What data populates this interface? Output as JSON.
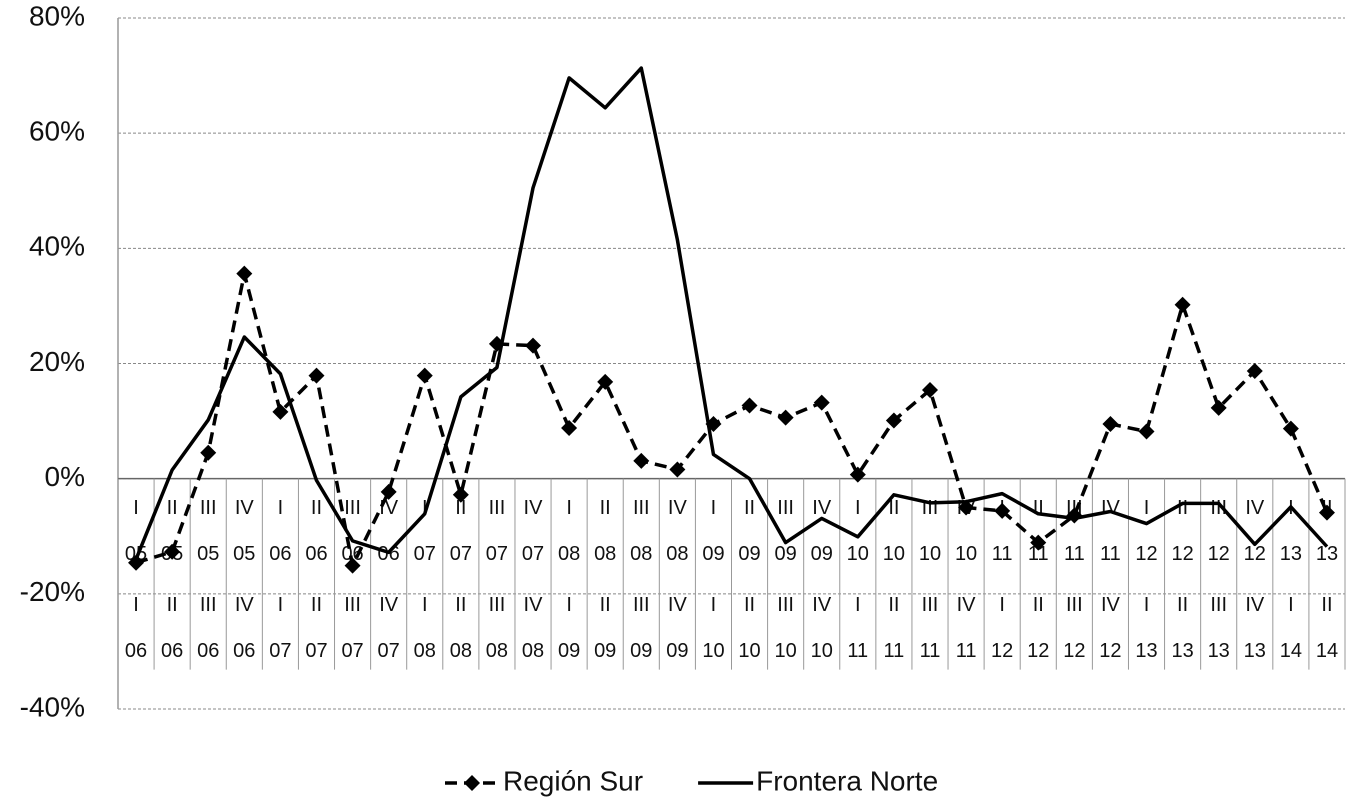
{
  "chart_data": {
    "type": "line",
    "categories": [
      [
        "I",
        "05",
        "I",
        "06"
      ],
      [
        "II",
        "05",
        "II",
        "06"
      ],
      [
        "III",
        "05",
        "III",
        "06"
      ],
      [
        "IV",
        "05",
        "IV",
        "06"
      ],
      [
        "I",
        "06",
        "I",
        "07"
      ],
      [
        "II",
        "06",
        "II",
        "07"
      ],
      [
        "III",
        "06",
        "III",
        "07"
      ],
      [
        "IV",
        "06",
        "IV",
        "07"
      ],
      [
        "I",
        "07",
        "I",
        "08"
      ],
      [
        "II",
        "07",
        "II",
        "08"
      ],
      [
        "III",
        "07",
        "III",
        "08"
      ],
      [
        "IV",
        "07",
        "IV",
        "08"
      ],
      [
        "I",
        "08",
        "I",
        "09"
      ],
      [
        "II",
        "08",
        "II",
        "09"
      ],
      [
        "III",
        "08",
        "III",
        "09"
      ],
      [
        "IV",
        "08",
        "IV",
        "09"
      ],
      [
        "I",
        "09",
        "I",
        "10"
      ],
      [
        "II",
        "09",
        "II",
        "10"
      ],
      [
        "III",
        "09",
        "III",
        "10"
      ],
      [
        "IV",
        "09",
        "IV",
        "10"
      ],
      [
        "I",
        "10",
        "I",
        "11"
      ],
      [
        "II",
        "10",
        "II",
        "11"
      ],
      [
        "III",
        "10",
        "III",
        "11"
      ],
      [
        "IV",
        "10",
        "IV",
        "11"
      ],
      [
        "I",
        "11",
        "I",
        "12"
      ],
      [
        "II",
        "11",
        "II",
        "12"
      ],
      [
        "III",
        "11",
        "III",
        "12"
      ],
      [
        "IV",
        "11",
        "IV",
        "12"
      ],
      [
        "I",
        "12",
        "I",
        "13"
      ],
      [
        "II",
        "12",
        "II",
        "13"
      ],
      [
        "III",
        "12",
        "III",
        "13"
      ],
      [
        "IV",
        "12",
        "IV",
        "13"
      ],
      [
        "I",
        "13",
        "I",
        "14"
      ],
      [
        "II",
        "13",
        "II",
        "14"
      ]
    ],
    "series": [
      {
        "name": "Región Sur",
        "color": "#000000",
        "style": "dashed",
        "marker": "diamond",
        "values": [
          -14.6,
          -12.7,
          4.5,
          35.6,
          11.6,
          17.9,
          -15.1,
          -2.3,
          17.9,
          -2.8,
          23.4,
          23.1,
          8.8,
          16.8,
          3.1,
          1.6,
          9.5,
          12.7,
          10.6,
          13.2,
          0.7,
          10.1,
          15.4,
          -5.0,
          -5.6,
          -11.1,
          -6.4,
          9.5,
          8.2,
          30.2,
          12.3,
          18.7,
          8.7,
          -5.9
        ]
      },
      {
        "name": "Frontera Norte",
        "color": "#000000",
        "style": "solid",
        "marker": "none",
        "values": [
          -14,
          1.5,
          10.2,
          24.6,
          18.2,
          -0.3,
          -10.8,
          -12.8,
          -6.1,
          14.2,
          19.3,
          50.5,
          69.6,
          64.4,
          71.3,
          41.5,
          4.2,
          0,
          -11.1,
          -6.9,
          -10.1,
          -2.8,
          -4.2,
          -4.0,
          -2.6,
          -6.1,
          -6.9,
          -5.7,
          -7.8,
          -4.3,
          -4.3,
          -11.4,
          -4.9,
          -11.8
        ]
      }
    ],
    "ylim": [
      -40,
      80
    ],
    "yticks": [
      {
        "value": -40,
        "label": "-40%"
      },
      {
        "value": -20,
        "label": "-20%"
      },
      {
        "value": 0,
        "label": "0%"
      },
      {
        "value": 20,
        "label": "20%"
      },
      {
        "value": 40,
        "label": "40%"
      },
      {
        "value": 60,
        "label": "60%"
      },
      {
        "value": 80,
        "label": "80%"
      }
    ],
    "grid": true,
    "legend": "bottom"
  }
}
